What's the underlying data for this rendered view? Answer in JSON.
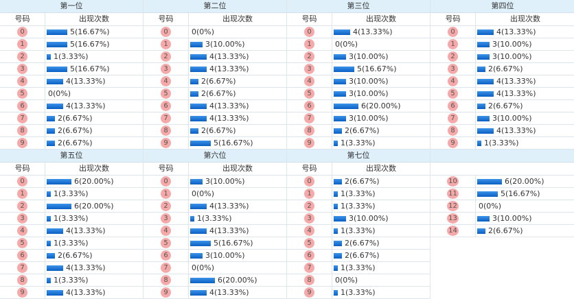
{
  "headers": {
    "number_col": "号码",
    "count_col": "出现次数"
  },
  "colors": {
    "ball": "#f5a9a9",
    "bar_top": "#3c93e8",
    "bar_bottom": "#0a5fc4",
    "title_bg": "#dff0fb"
  },
  "blocks": [
    {
      "title": "第一位",
      "rows": [
        {
          "num": "0",
          "count": 5,
          "text": "5(16.67%)"
        },
        {
          "num": "1",
          "count": 5,
          "text": "5(16.67%)"
        },
        {
          "num": "2",
          "count": 1,
          "text": "1(3.33%)"
        },
        {
          "num": "3",
          "count": 5,
          "text": "5(16.67%)"
        },
        {
          "num": "4",
          "count": 4,
          "text": "4(13.33%)"
        },
        {
          "num": "5",
          "count": 0,
          "text": "0(0%)"
        },
        {
          "num": "6",
          "count": 4,
          "text": "4(13.33%)"
        },
        {
          "num": "7",
          "count": 2,
          "text": "2(6.67%)"
        },
        {
          "num": "8",
          "count": 2,
          "text": "2(6.67%)"
        },
        {
          "num": "9",
          "count": 2,
          "text": "2(6.67%)"
        }
      ]
    },
    {
      "title": "第二位",
      "rows": [
        {
          "num": "0",
          "count": 0,
          "text": "0(0%)"
        },
        {
          "num": "1",
          "count": 3,
          "text": "3(10.00%)"
        },
        {
          "num": "2",
          "count": 4,
          "text": "4(13.33%)"
        },
        {
          "num": "3",
          "count": 4,
          "text": "4(13.33%)"
        },
        {
          "num": "4",
          "count": 2,
          "text": "2(6.67%)"
        },
        {
          "num": "5",
          "count": 2,
          "text": "2(6.67%)"
        },
        {
          "num": "6",
          "count": 4,
          "text": "4(13.33%)"
        },
        {
          "num": "7",
          "count": 4,
          "text": "4(13.33%)"
        },
        {
          "num": "8",
          "count": 2,
          "text": "2(6.67%)"
        },
        {
          "num": "9",
          "count": 5,
          "text": "5(16.67%)"
        }
      ]
    },
    {
      "title": "第三位",
      "rows": [
        {
          "num": "0",
          "count": 4,
          "text": "4(13.33%)"
        },
        {
          "num": "1",
          "count": 0,
          "text": "0(0%)"
        },
        {
          "num": "2",
          "count": 3,
          "text": "3(10.00%)"
        },
        {
          "num": "3",
          "count": 5,
          "text": "5(16.67%)"
        },
        {
          "num": "4",
          "count": 3,
          "text": "3(10.00%)"
        },
        {
          "num": "5",
          "count": 3,
          "text": "3(10.00%)"
        },
        {
          "num": "6",
          "count": 6,
          "text": "6(20.00%)"
        },
        {
          "num": "7",
          "count": 3,
          "text": "3(10.00%)"
        },
        {
          "num": "8",
          "count": 2,
          "text": "2(6.67%)"
        },
        {
          "num": "9",
          "count": 1,
          "text": "1(3.33%)"
        }
      ]
    },
    {
      "title": "第四位",
      "rows": [
        {
          "num": "0",
          "count": 4,
          "text": "4(13.33%)"
        },
        {
          "num": "1",
          "count": 3,
          "text": "3(10.00%)"
        },
        {
          "num": "2",
          "count": 3,
          "text": "3(10.00%)"
        },
        {
          "num": "3",
          "count": 2,
          "text": "2(6.67%)"
        },
        {
          "num": "4",
          "count": 4,
          "text": "4(13.33%)"
        },
        {
          "num": "5",
          "count": 4,
          "text": "4(13.33%)"
        },
        {
          "num": "6",
          "count": 2,
          "text": "2(6.67%)"
        },
        {
          "num": "7",
          "count": 3,
          "text": "3(10.00%)"
        },
        {
          "num": "8",
          "count": 4,
          "text": "4(13.33%)"
        },
        {
          "num": "9",
          "count": 1,
          "text": "1(3.33%)"
        }
      ]
    },
    {
      "title": "第五位",
      "rows": [
        {
          "num": "0",
          "count": 6,
          "text": "6(20.00%)"
        },
        {
          "num": "1",
          "count": 1,
          "text": "1(3.33%)"
        },
        {
          "num": "2",
          "count": 6,
          "text": "6(20.00%)"
        },
        {
          "num": "3",
          "count": 1,
          "text": "1(3.33%)"
        },
        {
          "num": "4",
          "count": 4,
          "text": "4(13.33%)"
        },
        {
          "num": "5",
          "count": 1,
          "text": "1(3.33%)"
        },
        {
          "num": "6",
          "count": 2,
          "text": "2(6.67%)"
        },
        {
          "num": "7",
          "count": 4,
          "text": "4(13.33%)"
        },
        {
          "num": "8",
          "count": 1,
          "text": "1(3.33%)"
        },
        {
          "num": "9",
          "count": 4,
          "text": "4(13.33%)"
        }
      ]
    },
    {
      "title": "第六位",
      "rows": [
        {
          "num": "0",
          "count": 3,
          "text": "3(10.00%)"
        },
        {
          "num": "1",
          "count": 0,
          "text": "0(0%)"
        },
        {
          "num": "2",
          "count": 4,
          "text": "4(13.33%)"
        },
        {
          "num": "3",
          "count": 1,
          "text": "1(3.33%)"
        },
        {
          "num": "4",
          "count": 4,
          "text": "4(13.33%)"
        },
        {
          "num": "5",
          "count": 5,
          "text": "5(16.67%)"
        },
        {
          "num": "6",
          "count": 3,
          "text": "3(10.00%)"
        },
        {
          "num": "7",
          "count": 0,
          "text": "0(0%)"
        },
        {
          "num": "8",
          "count": 6,
          "text": "6(20.00%)"
        },
        {
          "num": "9",
          "count": 4,
          "text": "4(13.33%)"
        }
      ]
    },
    {
      "title": "第七位",
      "rows": [
        {
          "num": "0",
          "count": 2,
          "text": "2(6.67%)"
        },
        {
          "num": "1",
          "count": 1,
          "text": "1(3.33%)"
        },
        {
          "num": "2",
          "count": 1,
          "text": "1(3.33%)"
        },
        {
          "num": "3",
          "count": 3,
          "text": "3(10.00%)"
        },
        {
          "num": "4",
          "count": 1,
          "text": "1(3.33%)"
        },
        {
          "num": "5",
          "count": 2,
          "text": "2(6.67%)"
        },
        {
          "num": "6",
          "count": 2,
          "text": "2(6.67%)"
        },
        {
          "num": "7",
          "count": 1,
          "text": "1(3.33%)"
        },
        {
          "num": "8",
          "count": 0,
          "text": "0(0%)"
        },
        {
          "num": "9",
          "count": 1,
          "text": "1(3.33%)"
        }
      ]
    },
    {
      "title": "",
      "no_subheader_labels": true,
      "rows": [
        {
          "num": "10",
          "count": 6,
          "text": "6(20.00%)"
        },
        {
          "num": "11",
          "count": 5,
          "text": "5(16.67%)"
        },
        {
          "num": "12",
          "count": 0,
          "text": "0(0%)"
        },
        {
          "num": "13",
          "count": 3,
          "text": "3(10.00%)"
        },
        {
          "num": "14",
          "count": 2,
          "text": "2(6.67%)"
        }
      ]
    }
  ]
}
